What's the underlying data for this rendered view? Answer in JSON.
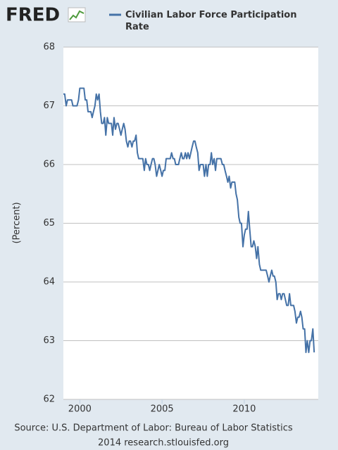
{
  "logo": "FRED",
  "chart_data": {
    "type": "line",
    "y_label": "(Percent)",
    "source": "Source: U.S. Department of Labor: Bureau of Labor Statistics",
    "credit": "2014 research.stlouisfed.org",
    "x": [
      1999,
      1999.08,
      1999.17,
      1999.25,
      1999.33,
      1999.42,
      1999.5,
      1999.58,
      1999.67,
      1999.75,
      1999.83,
      1999.92,
      2000,
      2000.08,
      2000.17,
      2000.25,
      2000.33,
      2000.42,
      2000.5,
      2000.58,
      2000.67,
      2000.75,
      2000.83,
      2000.92,
      2001,
      2001.08,
      2001.17,
      2001.25,
      2001.33,
      2001.42,
      2001.5,
      2001.58,
      2001.67,
      2001.75,
      2001.83,
      2001.92,
      2002,
      2002.08,
      2002.17,
      2002.25,
      2002.33,
      2002.42,
      2002.5,
      2002.58,
      2002.67,
      2002.75,
      2002.83,
      2002.92,
      2003,
      2003.08,
      2003.17,
      2003.25,
      2003.33,
      2003.42,
      2003.5,
      2003.58,
      2003.67,
      2003.75,
      2003.83,
      2003.92,
      2004,
      2004.08,
      2004.17,
      2004.25,
      2004.33,
      2004.42,
      2004.5,
      2004.58,
      2004.67,
      2004.75,
      2004.83,
      2004.92,
      2005,
      2005.08,
      2005.17,
      2005.25,
      2005.33,
      2005.42,
      2005.5,
      2005.58,
      2005.67,
      2005.75,
      2005.83,
      2005.92,
      2006,
      2006.08,
      2006.17,
      2006.25,
      2006.33,
      2006.42,
      2006.5,
      2006.58,
      2006.67,
      2006.75,
      2006.83,
      2006.92,
      2007,
      2007.08,
      2007.17,
      2007.25,
      2007.33,
      2007.42,
      2007.5,
      2007.58,
      2007.67,
      2007.75,
      2007.83,
      2007.92,
      2008,
      2008.08,
      2008.17,
      2008.25,
      2008.33,
      2008.42,
      2008.5,
      2008.58,
      2008.67,
      2008.75,
      2008.83,
      2008.92,
      2009,
      2009.08,
      2009.17,
      2009.25,
      2009.33,
      2009.42,
      2009.5,
      2009.58,
      2009.67,
      2009.75,
      2009.83,
      2009.92,
      2010,
      2010.08,
      2010.17,
      2010.25,
      2010.33,
      2010.42,
      2010.5,
      2010.58,
      2010.67,
      2010.75,
      2010.83,
      2010.92,
      2011,
      2011.08,
      2011.17,
      2011.25,
      2011.33,
      2011.42,
      2011.5,
      2011.58,
      2011.67,
      2011.75,
      2011.83,
      2011.92,
      2012,
      2012.08,
      2012.17,
      2012.25,
      2012.33,
      2012.42,
      2012.5,
      2012.58,
      2012.67,
      2012.75,
      2012.83,
      2012.92,
      2013,
      2013.08,
      2013.17,
      2013.25,
      2013.33,
      2013.42,
      2013.5,
      2013.58,
      2013.67,
      2013.75,
      2013.83,
      2013.92,
      2014,
      2014.08,
      2014.17,
      2014.25
    ],
    "series": [
      {
        "name": "Civilian Labor Force Participation Rate",
        "color": "#4572a7",
        "values": [
          67.2,
          67.2,
          67.0,
          67.1,
          67.1,
          67.1,
          67.1,
          67.0,
          67.0,
          67.0,
          67.0,
          67.1,
          67.3,
          67.3,
          67.3,
          67.3,
          67.1,
          67.1,
          66.9,
          66.9,
          66.9,
          66.8,
          66.9,
          67.0,
          67.2,
          67.1,
          67.2,
          66.9,
          66.7,
          66.7,
          66.8,
          66.5,
          66.8,
          66.7,
          66.7,
          66.7,
          66.5,
          66.8,
          66.6,
          66.7,
          66.7,
          66.6,
          66.5,
          66.6,
          66.7,
          66.6,
          66.4,
          66.3,
          66.4,
          66.4,
          66.3,
          66.4,
          66.4,
          66.5,
          66.2,
          66.1,
          66.1,
          66.1,
          66.1,
          65.9,
          66.1,
          66.0,
          66.0,
          65.9,
          66.0,
          66.1,
          66.1,
          66.0,
          65.8,
          65.9,
          66.0,
          65.9,
          65.8,
          65.9,
          65.9,
          66.1,
          66.1,
          66.1,
          66.1,
          66.2,
          66.1,
          66.1,
          66.0,
          66.0,
          66.0,
          66.1,
          66.2,
          66.1,
          66.1,
          66.2,
          66.1,
          66.2,
          66.1,
          66.2,
          66.3,
          66.4,
          66.4,
          66.3,
          66.2,
          65.9,
          66.0,
          66.0,
          66.0,
          65.8,
          66.0,
          65.8,
          66.0,
          66.0,
          66.2,
          66.0,
          66.1,
          65.9,
          66.1,
          66.1,
          66.1,
          66.1,
          66.0,
          66.0,
          65.9,
          65.8,
          65.7,
          65.8,
          65.6,
          65.7,
          65.7,
          65.7,
          65.5,
          65.4,
          65.1,
          65.0,
          65.0,
          64.6,
          64.8,
          64.9,
          64.9,
          65.2,
          64.9,
          64.6,
          64.6,
          64.7,
          64.6,
          64.4,
          64.6,
          64.3,
          64.2,
          64.2,
          64.2,
          64.2,
          64.2,
          64.1,
          64.0,
          64.1,
          64.2,
          64.1,
          64.1,
          64.0,
          63.7,
          63.8,
          63.8,
          63.7,
          63.8,
          63.8,
          63.7,
          63.6,
          63.6,
          63.8,
          63.6,
          63.6,
          63.6,
          63.5,
          63.3,
          63.4,
          63.4,
          63.5,
          63.4,
          63.2,
          63.2,
          62.8,
          63.0,
          62.8,
          63.0,
          63.0,
          63.2,
          62.8
        ]
      }
    ],
    "xlim": [
      1999,
      2014.5
    ],
    "xticks": [
      2000,
      2005,
      2010
    ],
    "ylim": [
      62,
      68
    ],
    "yticks": [
      62,
      63,
      64,
      65,
      66,
      67,
      68
    ],
    "grid": true
  }
}
